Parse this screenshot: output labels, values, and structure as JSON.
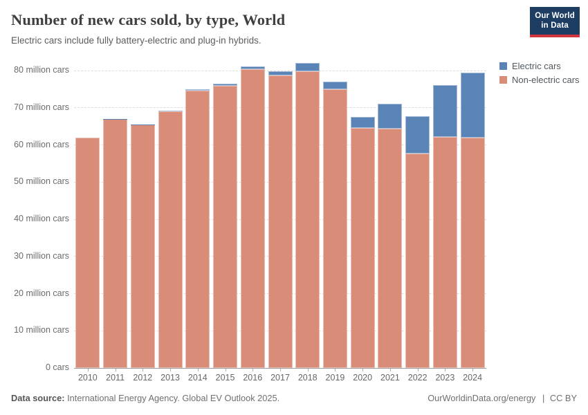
{
  "header": {
    "title": "Number of new cars sold, by type, World",
    "subtitle": "Electric cars include fully battery-electric and plug-in hybrids.",
    "logo": {
      "line1": "Our World",
      "line2": "in Data",
      "bg_color": "#1d3d63",
      "accent_color": "#d1353f"
    }
  },
  "legend": [
    {
      "label": "Electric cars",
      "color": "#5b84b6"
    },
    {
      "label": "Non-electric cars",
      "color": "#d98c77"
    }
  ],
  "chart_data": {
    "type": "bar",
    "stacked": true,
    "title": "Number of new cars sold, by type, World",
    "categories": [
      "2010",
      "2011",
      "2012",
      "2013",
      "2014",
      "2015",
      "2016",
      "2017",
      "2018",
      "2019",
      "2020",
      "2021",
      "2022",
      "2023",
      "2024"
    ],
    "series": [
      {
        "name": "Electric cars",
        "color": "#5b84b6",
        "values": [
          0.01,
          0.05,
          0.12,
          0.2,
          0.32,
          0.55,
          0.76,
          1.2,
          2.1,
          2.1,
          3.0,
          6.6,
          10.2,
          13.9,
          17.4
        ]
      },
      {
        "name": "Non-electric cars",
        "color": "#d98c77",
        "values": [
          61.9,
          67.0,
          65.4,
          69.0,
          74.6,
          75.9,
          80.3,
          78.7,
          79.9,
          74.9,
          64.5,
          64.4,
          57.6,
          62.2,
          62.0
        ]
      }
    ],
    "totals": [
      61.9,
      67.0,
      65.5,
      69.2,
      74.9,
      76.5,
      81.1,
      79.9,
      82.0,
      77.0,
      67.5,
      71.0,
      67.8,
      76.1,
      79.4
    ],
    "xlabel": "",
    "ylabel": "",
    "ylim": [
      0,
      80
    ],
    "yticks": [
      0,
      10,
      20,
      30,
      40,
      50,
      60,
      70,
      80
    ],
    "ytick_labels": [
      "0 cars",
      "10 million cars",
      "20 million cars",
      "30 million cars",
      "40 million cars",
      "50 million cars",
      "60 million cars",
      "70 million cars",
      "80 million cars"
    ],
    "grid": "horizontal-dashed",
    "legend_position": "top-right",
    "stack_order_bottom_to_top": [
      "Non-electric cars",
      "Electric cars"
    ]
  },
  "footer": {
    "source_label": "Data source:",
    "source_text": " International Energy Agency. Global EV Outlook 2025.",
    "link": "OurWorldinData.org/energy",
    "separator": "|",
    "license": "CC BY"
  }
}
